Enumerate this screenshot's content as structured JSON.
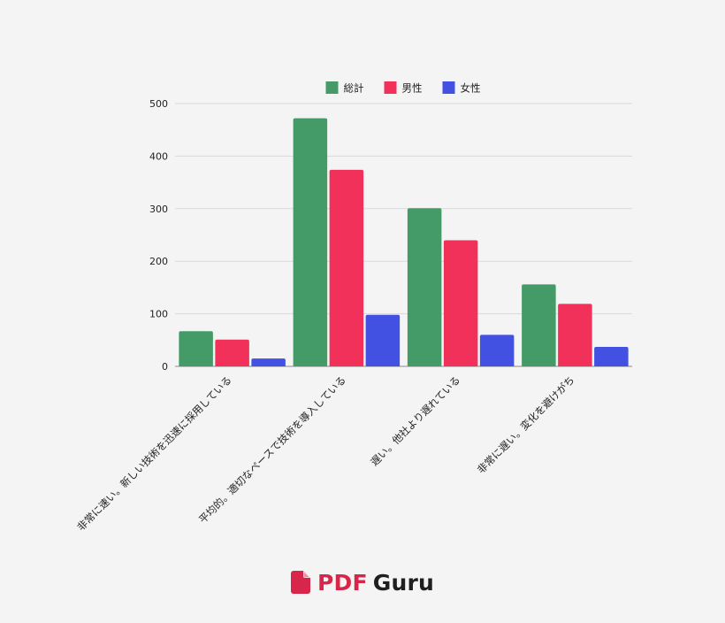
{
  "chart_data": {
    "type": "bar",
    "categories": [
      "非常に速い。新しい技術を迅速に採用している",
      "平均的。適切なペースで技術を導入している",
      "遅い。他社より遅れている",
      "非常に遅い。変化を避けがち"
    ],
    "series": [
      {
        "name": "総計",
        "color": "#449b67",
        "values": [
          67,
          472,
          301,
          156
        ]
      },
      {
        "name": "男性",
        "color": "#f2315a",
        "values": [
          51,
          374,
          240,
          119
        ]
      },
      {
        "name": "女性",
        "color": "#4251e2",
        "values": [
          15,
          98,
          60,
          37
        ]
      }
    ],
    "ylim": [
      0,
      500
    ],
    "yticks": [
      0,
      100,
      200,
      300,
      400,
      500
    ],
    "grid": true,
    "legend_position": "top-center",
    "title": "",
    "xlabel": "",
    "ylabel": ""
  },
  "brand": {
    "pdf": "PDF",
    "guru": "Guru",
    "logo_icon": "document-icon",
    "color": "#d7264a"
  }
}
